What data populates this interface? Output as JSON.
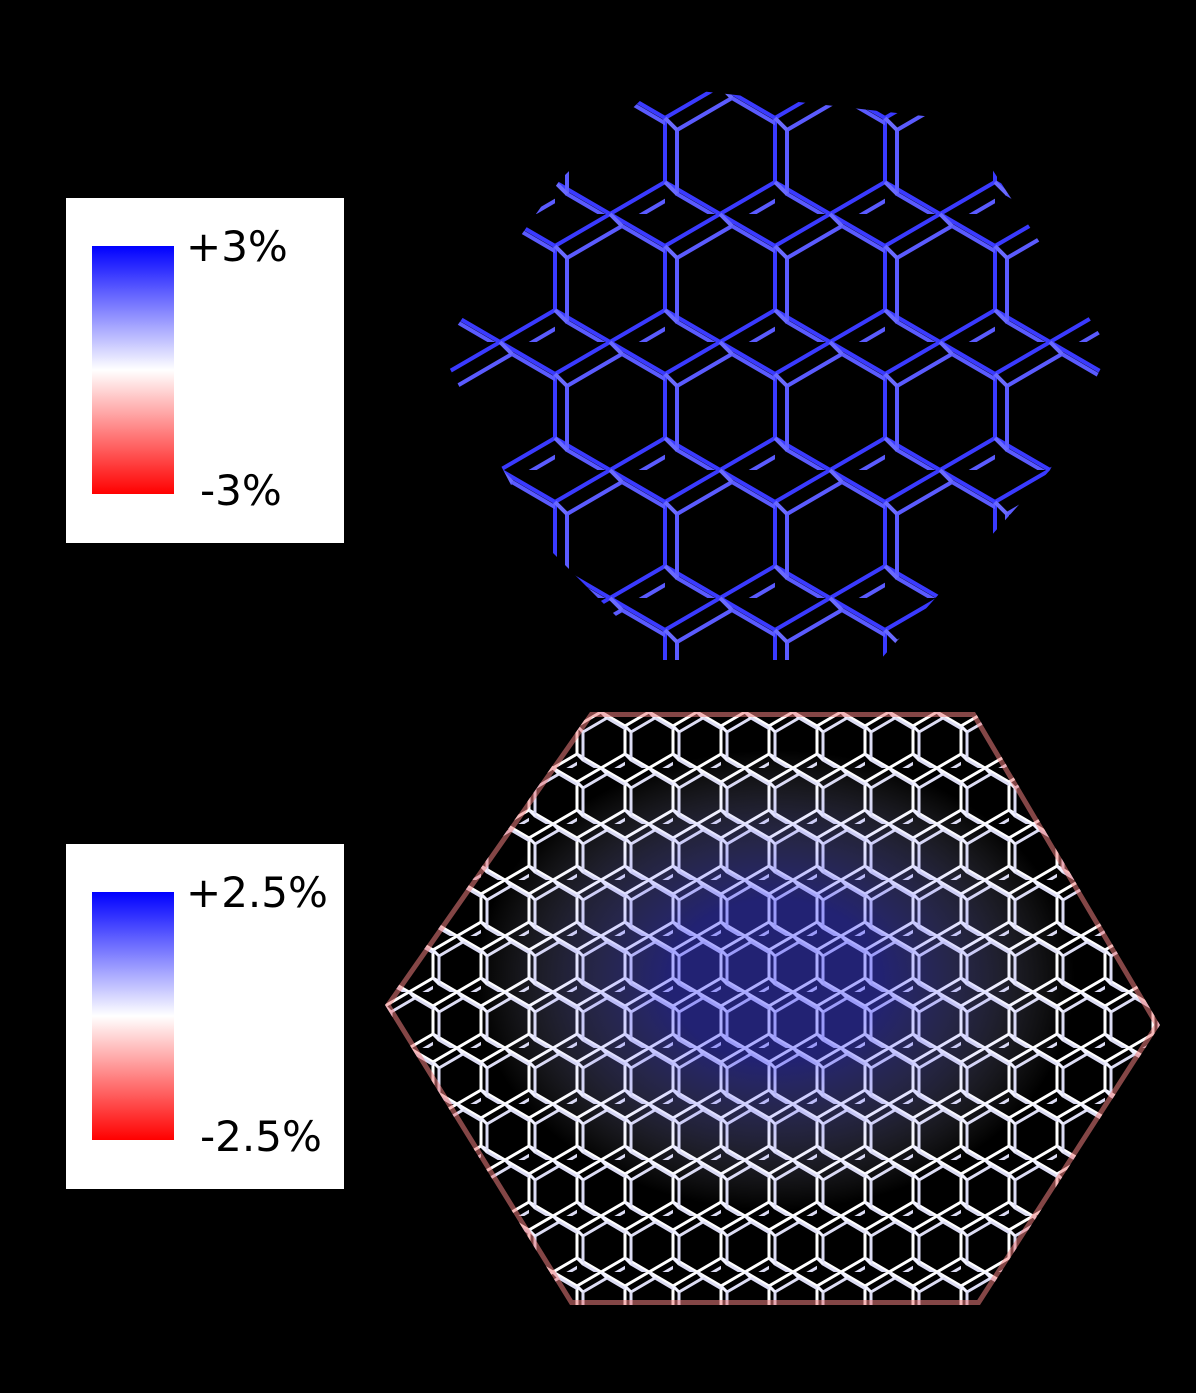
{
  "legends": [
    {
      "max_label": "+3%",
      "min_label": "-3%",
      "colors": {
        "high": "#0000ff",
        "mid": "#ffffff",
        "low": "#ff0000"
      }
    },
    {
      "max_label": "+2.5%",
      "min_label": "-2.5%",
      "colors": {
        "high": "#0000ff",
        "mid": "#ffffff",
        "low": "#ff0000"
      }
    }
  ],
  "structures": [
    {
      "name": "uniform-strain-lattice",
      "dominant_color": "#4444ff"
    },
    {
      "name": "lattice-with-hole",
      "dominant_color": "#ffffff"
    }
  ]
}
